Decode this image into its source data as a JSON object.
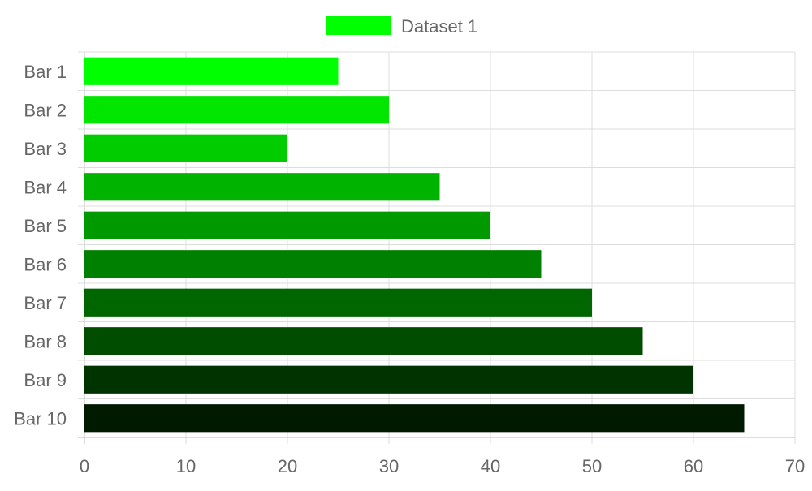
{
  "chart_data": {
    "type": "bar",
    "orientation": "horizontal",
    "categories": [
      "Bar 1",
      "Bar 2",
      "Bar 3",
      "Bar 4",
      "Bar 5",
      "Bar 6",
      "Bar 7",
      "Bar 8",
      "Bar 9",
      "Bar 10"
    ],
    "series": [
      {
        "name": "Dataset 1",
        "values": [
          25,
          30,
          20,
          35,
          40,
          45,
          50,
          55,
          60,
          65
        ],
        "colors": [
          "#00ff00",
          "#00e600",
          "#00cc00",
          "#00b300",
          "#009900",
          "#008000",
          "#006600",
          "#004d00",
          "#003300",
          "#001a00"
        ]
      }
    ],
    "xlim": [
      0,
      70
    ],
    "xticks": [
      0,
      10,
      20,
      30,
      40,
      50,
      60,
      70
    ],
    "grid": true,
    "legend_position": "top-center",
    "legend_color": "#00ff00"
  }
}
